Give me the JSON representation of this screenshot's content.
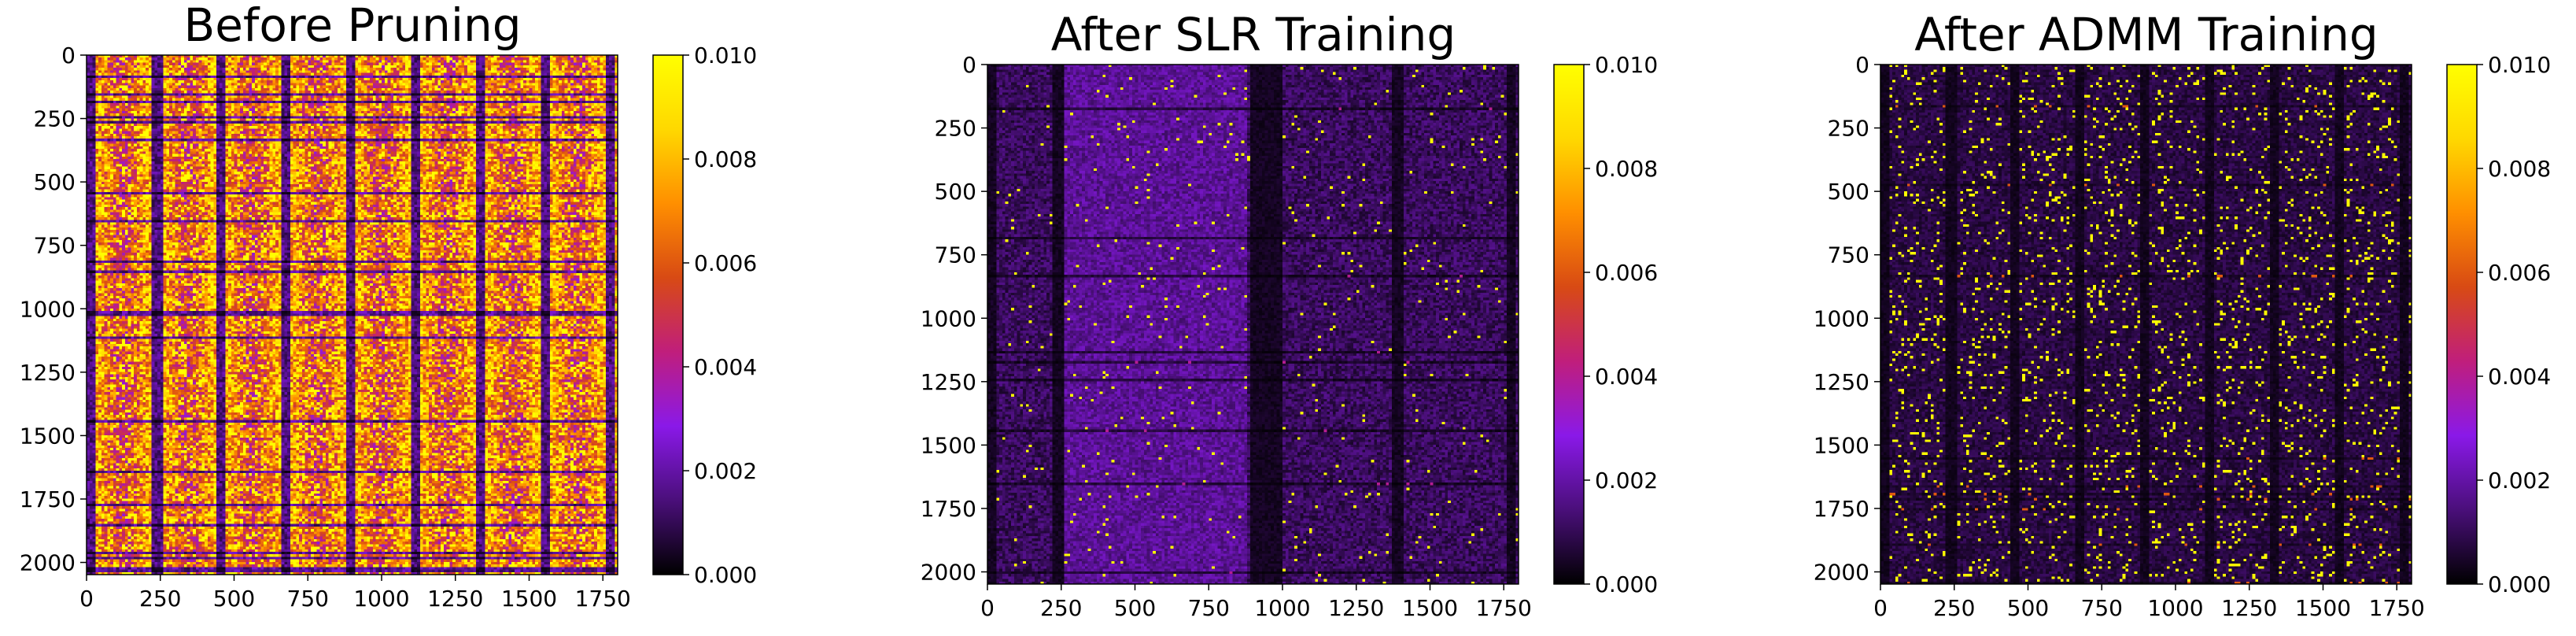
{
  "colormap": {
    "name": "gnuplot",
    "stops": [
      "#000000",
      "#4a0f7a",
      "#8a19e8",
      "#c01e7c",
      "#d84a14",
      "#ff8f00",
      "#ffd800",
      "#ffff00"
    ]
  },
  "chart_data": [
    {
      "type": "heatmap",
      "title": "Before Pruning",
      "xlabel": "",
      "ylabel": "",
      "xlim": [
        0,
        1800
      ],
      "ylim": [
        2048,
        0
      ],
      "x_ticks": [
        0,
        250,
        500,
        750,
        1000,
        1250,
        1500,
        1750
      ],
      "y_ticks": [
        0,
        250,
        500,
        750,
        1000,
        1250,
        1500,
        1750,
        2000
      ],
      "x_tick_labels": [
        "0",
        "250",
        "500",
        "750",
        "1000",
        "1250",
        "1500",
        "1750"
      ],
      "y_tick_labels": [
        "0",
        "250",
        "500",
        "750",
        "1000",
        "1250",
        "1500",
        "1750",
        "2000"
      ],
      "colorbar": {
        "min": 0.0,
        "max": 0.01,
        "tick_labels": [
          "0.000",
          "0.002",
          "0.004",
          "0.006",
          "0.008",
          "0.010"
        ]
      },
      "dark_column_bands": [
        [
          0,
          30
        ],
        [
          225,
          255
        ],
        [
          440,
          470
        ],
        [
          660,
          690
        ],
        [
          880,
          905
        ],
        [
          1100,
          1125
        ],
        [
          1325,
          1350
        ],
        [
          1540,
          1565
        ],
        [
          1760,
          1790
        ]
      ],
      "pattern": "dense"
    },
    {
      "type": "heatmap",
      "title": "After SLR Training",
      "xlabel": "",
      "ylabel": "",
      "xlim": [
        0,
        1800
      ],
      "ylim": [
        2048,
        0
      ],
      "x_ticks": [
        0,
        250,
        500,
        750,
        1000,
        1250,
        1500,
        1750
      ],
      "y_ticks": [
        0,
        250,
        500,
        750,
        1000,
        1250,
        1500,
        1750,
        2000
      ],
      "x_tick_labels": [
        "0",
        "250",
        "500",
        "750",
        "1000",
        "1250",
        "1500",
        "1750"
      ],
      "y_tick_labels": [
        "0",
        "250",
        "500",
        "750",
        "1000",
        "1250",
        "1500",
        "1750",
        "2000"
      ],
      "colorbar": {
        "min": 0.0,
        "max": 0.01,
        "tick_labels": [
          "0.000",
          "0.002",
          "0.004",
          "0.006",
          "0.008",
          "0.010"
        ]
      },
      "dark_column_bands": [
        [
          0,
          30
        ],
        [
          225,
          255
        ],
        [
          890,
          1000
        ],
        [
          1370,
          1410
        ],
        [
          1760,
          1790
        ]
      ],
      "pattern": "sparse"
    },
    {
      "type": "heatmap",
      "title": "After ADMM Training",
      "xlabel": "",
      "ylabel": "",
      "xlim": [
        0,
        1800
      ],
      "ylim": [
        2048,
        0
      ],
      "x_ticks": [
        0,
        250,
        500,
        750,
        1000,
        1250,
        1500,
        1750
      ],
      "y_ticks": [
        0,
        250,
        500,
        750,
        1000,
        1250,
        1500,
        1750,
        2000
      ],
      "x_tick_labels": [
        "0",
        "250",
        "500",
        "750",
        "1000",
        "1250",
        "1500",
        "1750"
      ],
      "y_tick_labels": [
        "0",
        "250",
        "500",
        "750",
        "1000",
        "1250",
        "1500",
        "1750",
        "2000"
      ],
      "colorbar": {
        "min": 0.0,
        "max": 0.01,
        "tick_labels": [
          "0.000",
          "0.002",
          "0.004",
          "0.006",
          "0.008",
          "0.010"
        ]
      },
      "dark_column_bands": [
        [
          0,
          30
        ],
        [
          225,
          255
        ],
        [
          440,
          470
        ],
        [
          660,
          690
        ],
        [
          880,
          905
        ],
        [
          1100,
          1125
        ],
        [
          1325,
          1350
        ],
        [
          1540,
          1565
        ],
        [
          1760,
          1790
        ]
      ],
      "pattern": "columns"
    }
  ]
}
